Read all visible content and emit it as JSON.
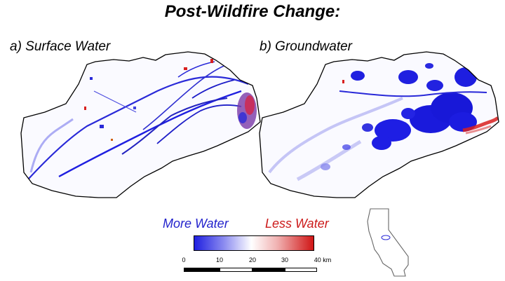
{
  "title": "Post-Wildfire Change:",
  "panels": {
    "a": {
      "label": "a) Surface Water"
    },
    "b": {
      "label": "b) Groundwater"
    }
  },
  "legend": {
    "more_label": "More Water",
    "less_label": "Less Water",
    "more_color": "#1f1fe0",
    "less_color": "#d01515",
    "neutral_color": "#ffffff"
  },
  "scale_bar": {
    "ticks": [
      "0",
      "10",
      "20",
      "30",
      "40 km"
    ],
    "values_km": [
      0,
      10,
      20,
      30,
      40
    ]
  },
  "inset": {
    "icon": "california-outline-icon"
  }
}
